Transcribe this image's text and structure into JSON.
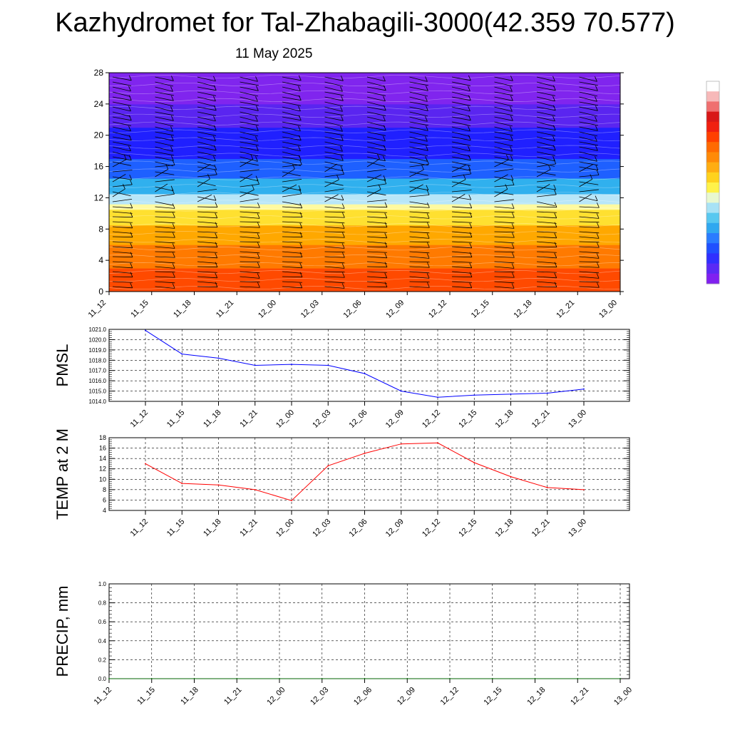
{
  "title": "Kazhydromet for Tal-Zhabagili-3000(42.359 70.577)",
  "date": "11 May 2025",
  "chart_data": [
    {
      "type": "heatmap",
      "title": "",
      "x_tick_labels": [
        "11_12",
        "11_15",
        "11_18",
        "11_21",
        "12_00",
        "12_03",
        "12_06",
        "12_09",
        "12_12",
        "12_15",
        "12_18",
        "12_21",
        "13_00"
      ],
      "y_ticks": [
        0,
        4,
        8,
        12,
        16,
        20,
        24,
        28
      ],
      "ylim": [
        0,
        28
      ],
      "color_bands": [
        {
          "from": 0,
          "to": 3,
          "color": "#ff4a00"
        },
        {
          "from": 3,
          "to": 6,
          "color": "#ff7a00"
        },
        {
          "from": 6,
          "to": 8.5,
          "color": "#ffa800"
        },
        {
          "from": 8.5,
          "to": 10.5,
          "color": "#ffe030"
        },
        {
          "from": 10.5,
          "to": 11.2,
          "color": "#fffaa0"
        },
        {
          "from": 11.2,
          "to": 12.5,
          "color": "#b8e6f8"
        },
        {
          "from": 12.5,
          "to": 14.5,
          "color": "#30b0ee"
        },
        {
          "from": 14.5,
          "to": 17,
          "color": "#1e60ff"
        },
        {
          "from": 17,
          "to": 21,
          "color": "#2020ff"
        },
        {
          "from": 21,
          "to": 24,
          "color": "#5a25f0"
        },
        {
          "from": 24,
          "to": 28,
          "color": "#8025ee"
        }
      ],
      "colorbar": [
        "#8020f0",
        "#5a2af5",
        "#3030ff",
        "#2050ff",
        "#2a7cff",
        "#30a8f0",
        "#58c8f0",
        "#a8e2f5",
        "#e8f8d0",
        "#fff24a",
        "#ffd21e",
        "#ffad12",
        "#ff8a08",
        "#ff6a02",
        "#ff4000",
        "#f02010",
        "#d81818",
        "#ef6f6f",
        "#f7b9b9",
        "#ffffff"
      ],
      "wind_barbs": true
    },
    {
      "type": "line",
      "ylabel": "PMSL",
      "x_tick_labels": [
        "11_12",
        "11_15",
        "11_18",
        "11_21",
        "12_00",
        "12_03",
        "12_06",
        "12_09",
        "12_12",
        "12_15",
        "12_18",
        "12_21",
        "13_00"
      ],
      "y_ticks": [
        "1014.0",
        "1015.0",
        "1016.0",
        "1017.0",
        "1018.0",
        "1019.0",
        "1020.0",
        "1021.0"
      ],
      "ylim": [
        1014,
        1021
      ],
      "grid": true,
      "series": [
        {
          "color": "#0000ff",
          "values": [
            1020.9,
            1018.6,
            1018.2,
            1017.5,
            1017.6,
            1017.5,
            1016.7,
            1015.0,
            1014.4,
            1014.6,
            1014.7,
            1014.8,
            1015.2
          ]
        }
      ]
    },
    {
      "type": "line",
      "ylabel": "TEMP at 2 M",
      "x_tick_labels": [
        "11_12",
        "11_15",
        "11_18",
        "11_21",
        "12_00",
        "12_03",
        "12_06",
        "12_09",
        "12_12",
        "12_15",
        "12_18",
        "12_21",
        "13_00"
      ],
      "y_ticks": [
        "4",
        "6",
        "8",
        "10",
        "12",
        "14",
        "16",
        "18"
      ],
      "ylim": [
        4,
        18
      ],
      "grid": true,
      "series": [
        {
          "color": "#ff0000",
          "values": [
            13.0,
            9.2,
            8.9,
            8.0,
            5.9,
            12.6,
            15.0,
            16.8,
            17.0,
            13.2,
            10.5,
            8.4,
            8.0
          ]
        }
      ]
    },
    {
      "type": "line",
      "ylabel": "PRECIP, mm",
      "x_tick_labels": [
        "11_12",
        "11_15",
        "11_18",
        "11_21",
        "12_00",
        "12_03",
        "12_06",
        "12_09",
        "12_12",
        "12_15",
        "12_18",
        "12_21",
        "13_00"
      ],
      "y_ticks": [
        "0.0",
        "0.2",
        "0.4",
        "0.6",
        "0.8",
        "1.0"
      ],
      "ylim": [
        0,
        1
      ],
      "grid": true,
      "series": [
        {
          "color": "#006400",
          "values": [
            0,
            0,
            0,
            0,
            0,
            0,
            0,
            0,
            0,
            0,
            0,
            0,
            0
          ]
        }
      ]
    }
  ]
}
